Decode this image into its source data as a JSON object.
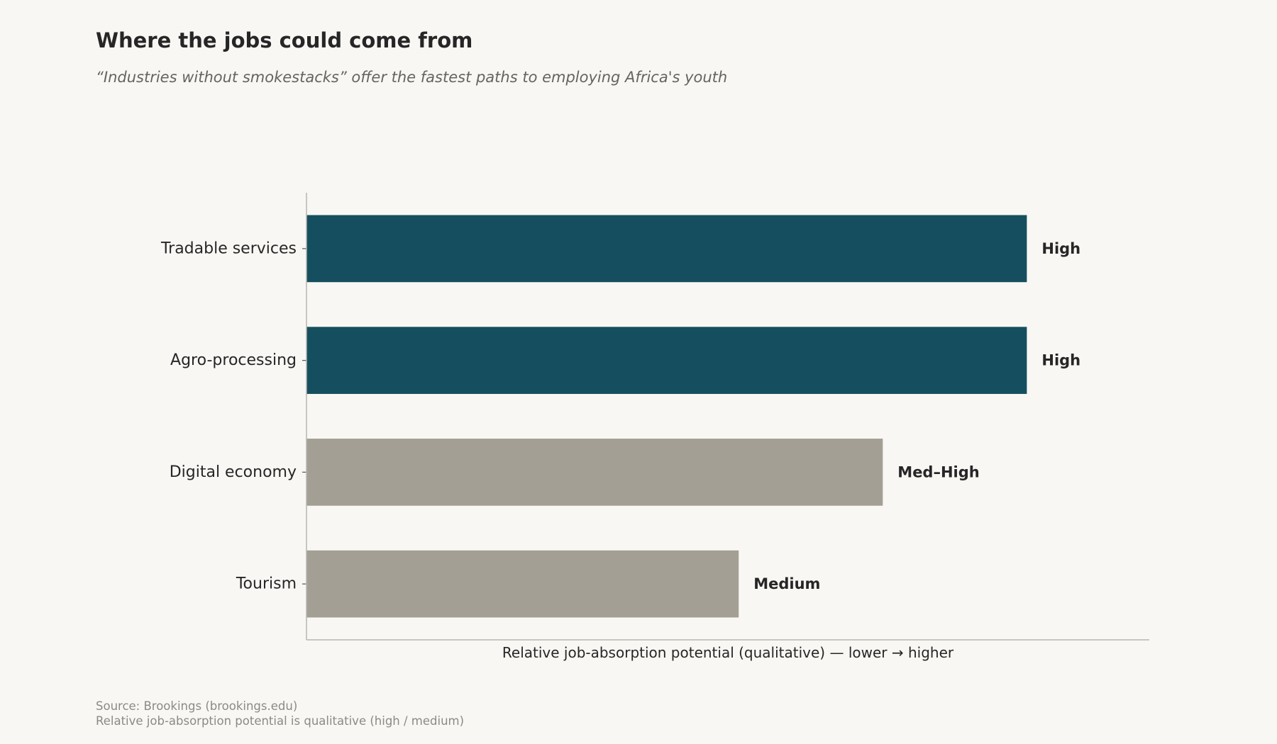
{
  "header": {
    "title": "Where the jobs could come from",
    "subtitle": "“Industries without smokestacks” offer the fastest paths to employing Africa's youth"
  },
  "chart_data": {
    "type": "bar",
    "orientation": "horizontal",
    "categories": [
      "Tradable services",
      "Agro-processing",
      "Digital economy",
      "Tourism"
    ],
    "values": [
      1.0,
      1.0,
      0.8,
      0.6
    ],
    "value_labels": [
      "High",
      "High",
      "Med–High",
      "Medium"
    ],
    "highlight": [
      true,
      true,
      false,
      false
    ],
    "xlabel": "Relative job-absorption potential (qualitative)  —  lower → higher",
    "xlim": [
      0,
      1.17
    ],
    "grid": false,
    "colors": {
      "highlight": "#154f5f",
      "muted": "#a39f94",
      "text": "#262626",
      "axis": "#b8b5b0"
    }
  },
  "footer": {
    "source": "Source: Brookings (brookings.edu)",
    "note": "Relative job-absorption potential is qualitative (high / medium)"
  }
}
